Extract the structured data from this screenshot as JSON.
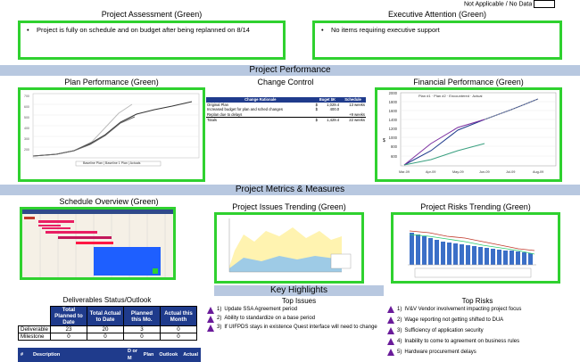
{
  "header": {
    "na_label": "Not Applicable / No Data"
  },
  "assessment": {
    "title": "Project Assessment (Green)",
    "bullet": "Project is fully on schedule and on budget after being replanned on 8/14"
  },
  "executive": {
    "title": "Executive Attention (Green)",
    "bullet": "No items requiring executive support"
  },
  "performance_band": "Project Performance",
  "plan_perf": {
    "title": "Plan Performance (Green)",
    "legend": [
      "Baseline Plan",
      "Baseline 1 Plan",
      "Actuals"
    ]
  },
  "change_control": {
    "title": "Change Control",
    "headers": [
      "Change Rationale",
      "Buget $K",
      "Schedule"
    ],
    "rows": [
      {
        "label": "Original Plan",
        "cur": "$",
        "amt": "1,029.4",
        "sched": "13 weeks"
      },
      {
        "label": "Increased budget for plan and sched changes",
        "cur": "$",
        "amt": "400.0",
        "sched": ""
      },
      {
        "label": "Replan due to delays",
        "cur": "",
        "amt": "",
        "sched": "+9 weeks"
      }
    ],
    "total": {
      "label": "Totals",
      "cur": "$",
      "amt": "1,429.4",
      "sched": "22 weeks"
    }
  },
  "fin_perf": {
    "title": "Financial Performance (Green)",
    "y_axis_label": "$",
    "legend": [
      "Plan #1",
      "Plan #2",
      "Encountered",
      "Actual"
    ],
    "colors": [
      "#1f3b8c",
      "#999999",
      "#7b2ea0",
      "#3aa080"
    ]
  },
  "metrics_band": "Project Metrics & Measures",
  "schedule": {
    "title": "Schedule Overview (Green)"
  },
  "issues_trend": {
    "title": "Project Issues Trending (Green)"
  },
  "risks_trend": {
    "title": "Project Risks Trending (Green)"
  },
  "highlights_band": "Key Highlights",
  "deliverables": {
    "title": "Deliverables Status/Outlook",
    "headers": [
      "Total Planned to Date",
      "Total Actual to Date",
      "Planned this Mo.",
      "Actual this Month"
    ],
    "rows": [
      {
        "label": "Deliverable",
        "values": [
          "23",
          "20",
          "3",
          "0"
        ]
      },
      {
        "label": "Milestone",
        "values": [
          "0",
          "0",
          "0",
          "0"
        ]
      }
    ],
    "desc_headers": [
      "#",
      "Description",
      "D or M",
      "Plan",
      "Outlook",
      "Actual"
    ]
  },
  "top_issues": {
    "title": "Top Issues",
    "items": [
      {
        "num": "1)",
        "text": "Update SSA Agreement period"
      },
      {
        "num": "2)",
        "text": "Ability to standardize on a base period"
      },
      {
        "num": "3)",
        "text": "If UIFPDS stays in existence Quest interface will need to change"
      }
    ]
  },
  "top_risks": {
    "title": "Top Risks",
    "items": [
      {
        "num": "1)",
        "text": "IV&V Vendor involvement impacting project focus"
      },
      {
        "num": "2)",
        "text": "Wage reporting not getting shifted to DUA"
      },
      {
        "num": "3)",
        "text": "Sufficiency of application security"
      },
      {
        "num": "4)",
        "text": "Inability to come to agreement on business rules"
      },
      {
        "num": "5)",
        "text": "Hardware procurement delays"
      }
    ]
  }
}
